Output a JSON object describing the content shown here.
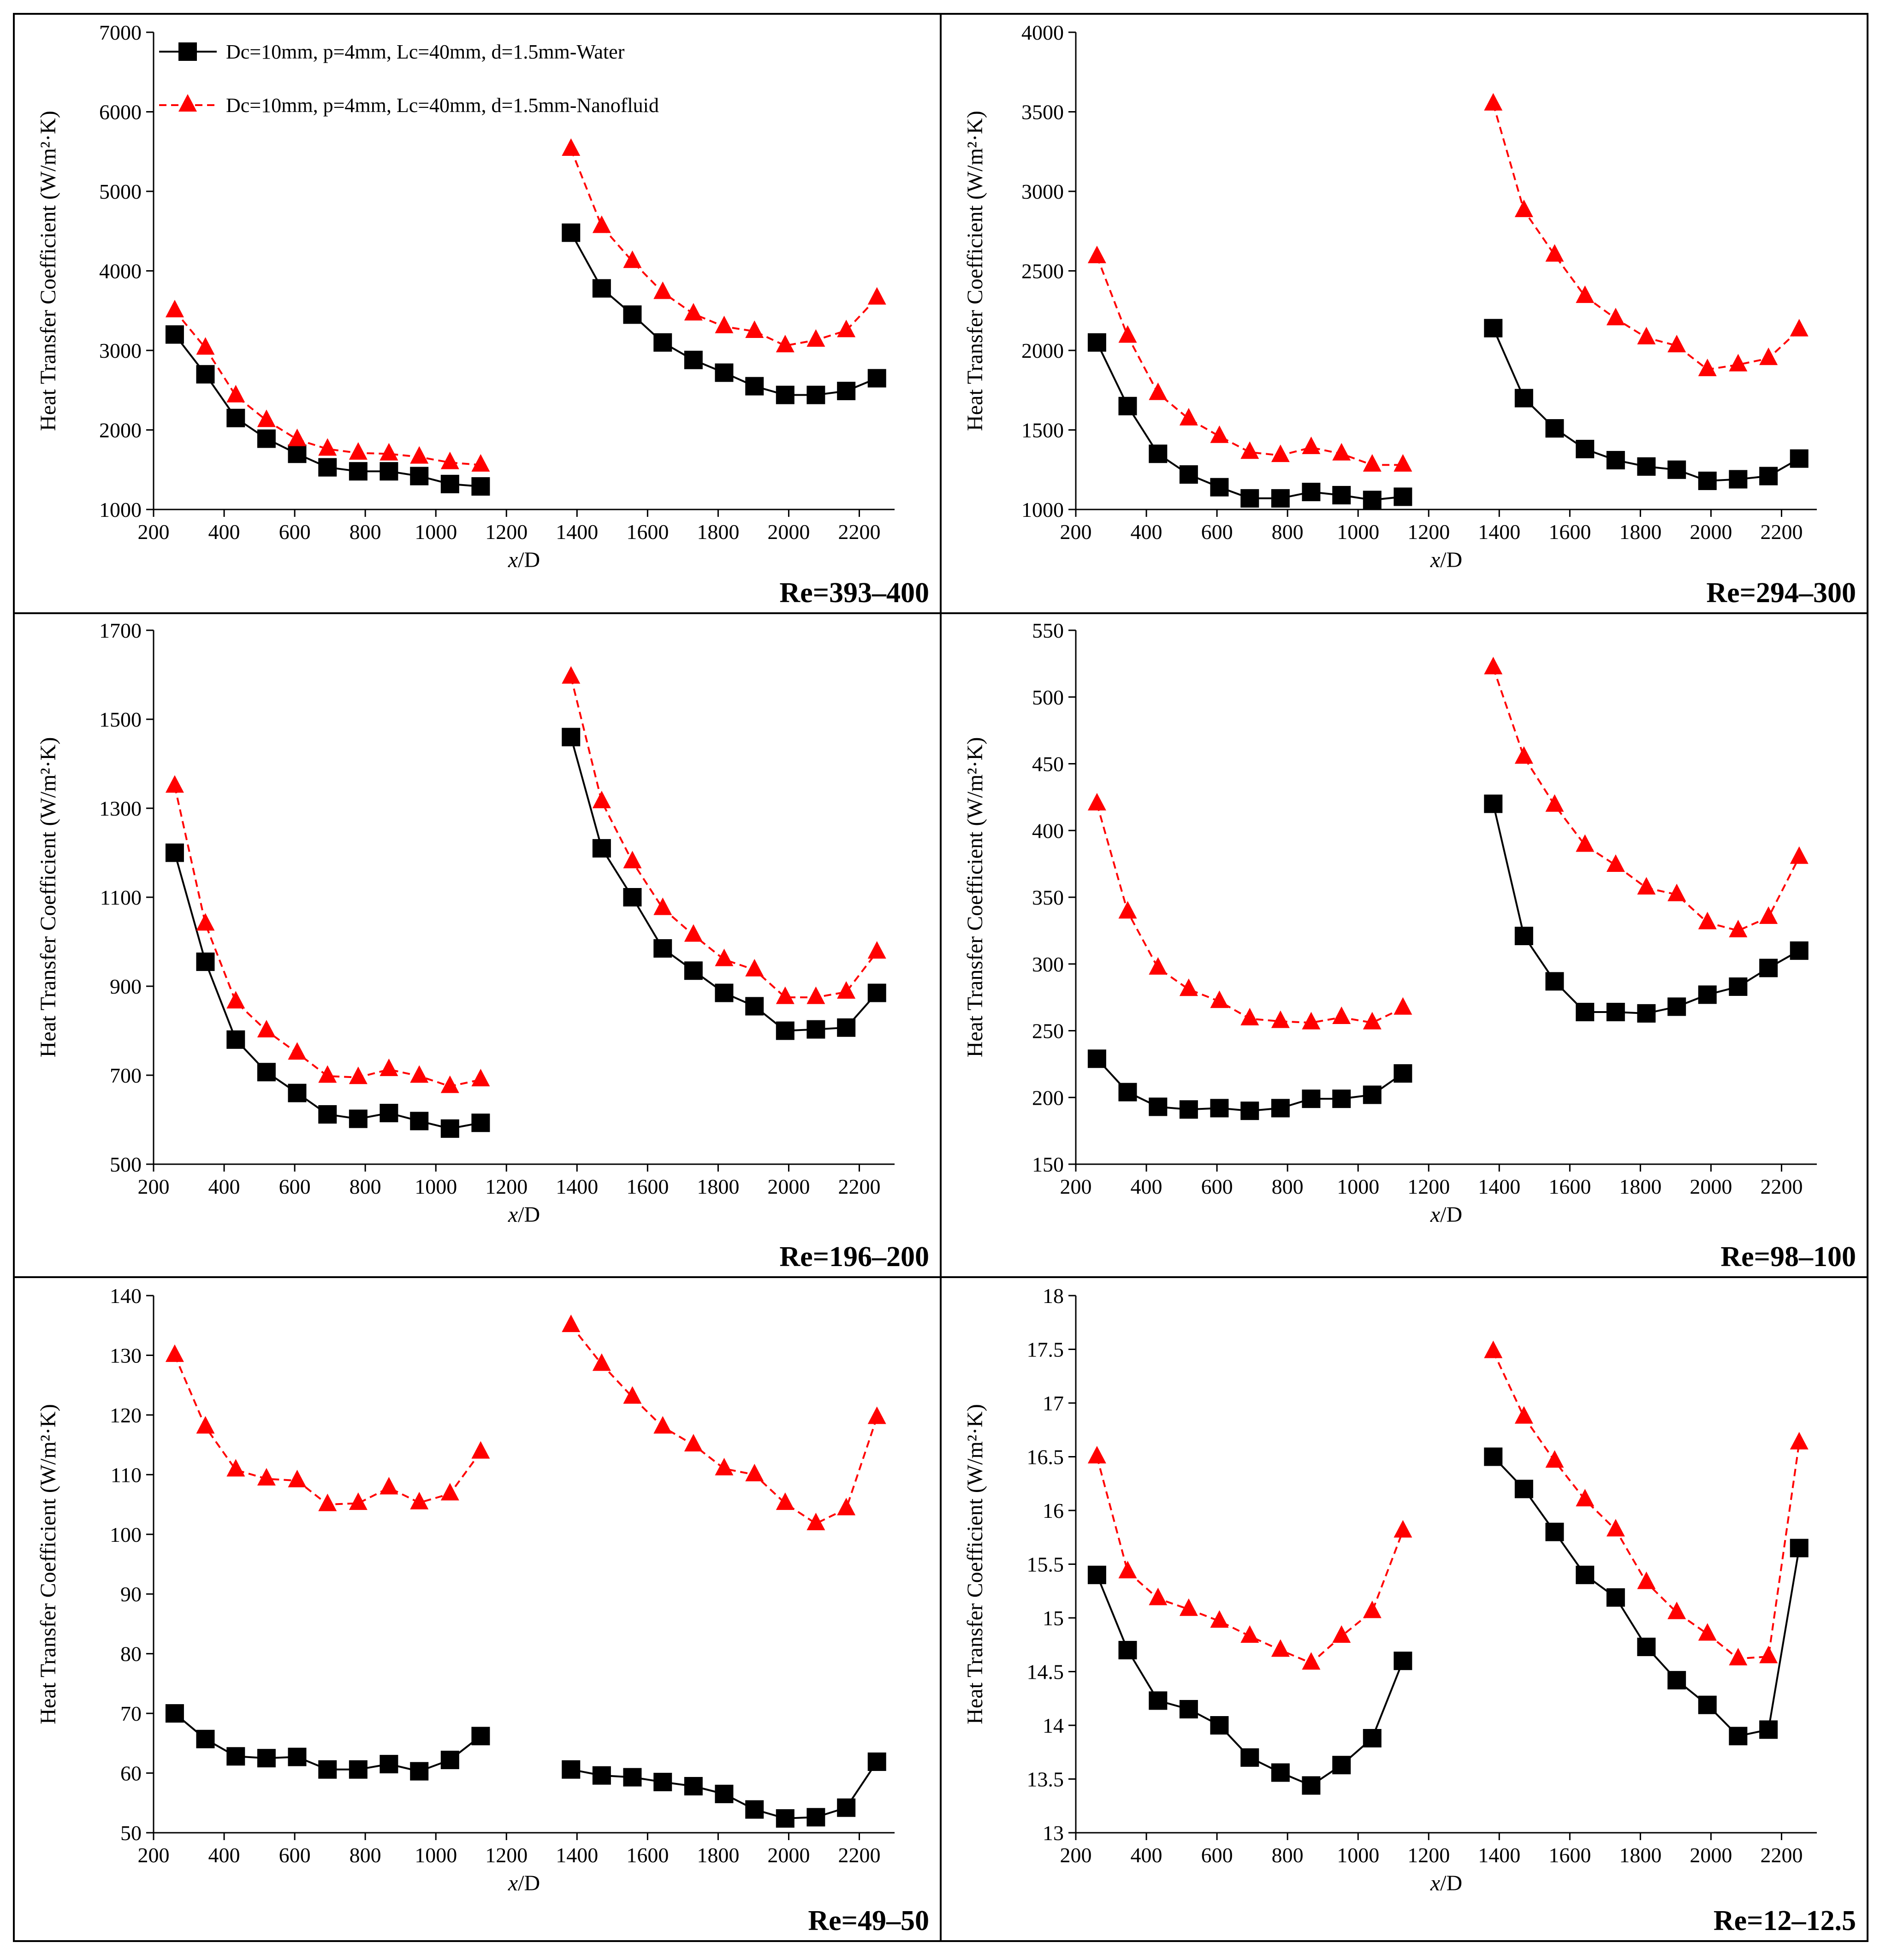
{
  "chart_data": [
    {
      "type": "line",
      "panel_label": "Re=393–400",
      "xlabel_italic": "x",
      "xlabel_rest": "/D",
      "ylabel": "Heat Transfer Coefficient (W/m²·K)",
      "xlim": [
        200,
        2300
      ],
      "ylim": [
        1000,
        7000
      ],
      "xticks": [
        "200",
        "400",
        "600",
        "800",
        "1000",
        "1200",
        "1400",
        "1600",
        "1800",
        "2000",
        "2200"
      ],
      "yticks": [
        "1000",
        "2000",
        "3000",
        "4000",
        "5000",
        "6000",
        "7000"
      ],
      "legend": [
        "Dc=10mm, p=4mm, Lc=40mm, d=1.5mm-Water",
        "Dc=10mm, p=4mm, Lc=40mm, d=1.5mm-Nanofluid"
      ],
      "series": [
        {
          "name": "Water",
          "segments": [
            {
              "x": [
                260,
                347,
                433,
                520,
                607,
                693,
                780,
                867,
                953,
                1040,
                1127
              ],
              "y": [
                3200,
                2700,
                2150,
                1890,
                1700,
                1530,
                1480,
                1480,
                1420,
                1320,
                1290
              ]
            },
            {
              "x": [
                1383,
                1470,
                1557,
                1643,
                1730,
                1817,
                1903,
                1990,
                2077,
                2163,
                2250
              ],
              "y": [
                4480,
                3780,
                3450,
                3100,
                2880,
                2720,
                2550,
                2440,
                2440,
                2490,
                2650
              ]
            }
          ]
        },
        {
          "name": "Nanofluid",
          "segments": [
            {
              "x": [
                260,
                347,
                433,
                520,
                607,
                693,
                780,
                867,
                953,
                1040,
                1127
              ],
              "y": [
                3500,
                3030,
                2430,
                2120,
                1880,
                1760,
                1710,
                1700,
                1660,
                1590,
                1560
              ]
            },
            {
              "x": [
                1383,
                1470,
                1557,
                1643,
                1730,
                1817,
                1903,
                1990,
                2077,
                2163,
                2250
              ],
              "y": [
                5530,
                4560,
                4120,
                3730,
                3460,
                3300,
                3240,
                3060,
                3130,
                3250,
                3660
              ]
            }
          ]
        }
      ]
    },
    {
      "type": "line",
      "panel_label": "Re=294–300",
      "xlabel_italic": "x",
      "xlabel_rest": "/D",
      "ylabel": "Heat Transfer Coefficient (W/m²·K)",
      "xlim": [
        200,
        2300
      ],
      "ylim": [
        1000,
        4000
      ],
      "xticks": [
        "200",
        "400",
        "600",
        "800",
        "1000",
        "1200",
        "1400",
        "1600",
        "1800",
        "2000",
        "2200"
      ],
      "yticks": [
        "1000",
        "1500",
        "2000",
        "2500",
        "3000",
        "3500",
        "4000"
      ],
      "series": [
        {
          "name": "Water",
          "segments": [
            {
              "x": [
                260,
                347,
                433,
                520,
                607,
                693,
                780,
                867,
                953,
                1040,
                1127
              ],
              "y": [
                2050,
                1650,
                1350,
                1220,
                1140,
                1070,
                1070,
                1110,
                1090,
                1060,
                1080
              ]
            },
            {
              "x": [
                1383,
                1470,
                1557,
                1643,
                1730,
                1817,
                1903,
                1990,
                2077,
                2163,
                2250
              ],
              "y": [
                2140,
                1700,
                1510,
                1380,
                1310,
                1270,
                1250,
                1180,
                1190,
                1210,
                1320
              ]
            }
          ]
        },
        {
          "name": "Nanofluid",
          "segments": [
            {
              "x": [
                260,
                347,
                433,
                520,
                607,
                693,
                780,
                867,
                953,
                1040,
                1127
              ],
              "y": [
                2590,
                2090,
                1730,
                1570,
                1460,
                1360,
                1340,
                1390,
                1350,
                1280,
                1280
              ]
            },
            {
              "x": [
                1383,
                1470,
                1557,
                1643,
                1730,
                1817,
                1903,
                1990,
                2077,
                2163,
                2250
              ],
              "y": [
                3550,
                2880,
                2600,
                2340,
                2200,
                2080,
                2030,
                1880,
                1910,
                1950,
                2130
              ]
            }
          ]
        }
      ]
    },
    {
      "type": "line",
      "panel_label": "Re=196–200",
      "xlabel_italic": "x",
      "xlabel_rest": "/D",
      "ylabel": "Heat Transfer Coefficient (W/m²·K)",
      "xlim": [
        200,
        2300
      ],
      "ylim": [
        500,
        1700
      ],
      "xticks": [
        "200",
        "400",
        "600",
        "800",
        "1000",
        "1200",
        "1400",
        "1600",
        "1800",
        "2000",
        "2200"
      ],
      "yticks": [
        "500",
        "700",
        "900",
        "1100",
        "1300",
        "1500",
        "1700"
      ],
      "series": [
        {
          "name": "Water",
          "segments": [
            {
              "x": [
                260,
                347,
                433,
                520,
                607,
                693,
                780,
                867,
                953,
                1040,
                1127
              ],
              "y": [
                1200,
                955,
                780,
                707,
                660,
                612,
                602,
                615,
                597,
                580,
                593
              ]
            },
            {
              "x": [
                1383,
                1470,
                1557,
                1643,
                1730,
                1817,
                1903,
                1990,
                2077,
                2163,
                2250
              ],
              "y": [
                1460,
                1210,
                1100,
                985,
                935,
                885,
                855,
                800,
                803,
                807,
                885
              ]
            }
          ]
        },
        {
          "name": "Nanofluid",
          "segments": [
            {
              "x": [
                260,
                347,
                433,
                520,
                607,
                693,
                780,
                867,
                953,
                1040,
                1127
              ],
              "y": [
                1350,
                1040,
                865,
                800,
                750,
                698,
                695,
                713,
                698,
                675,
                690
              ]
            },
            {
              "x": [
                1383,
                1470,
                1557,
                1643,
                1730,
                1817,
                1903,
                1990,
                2077,
                2163,
                2250
              ],
              "y": [
                1595,
                1315,
                1180,
                1075,
                1015,
                960,
                937,
                875,
                875,
                887,
                977
              ]
            }
          ]
        }
      ]
    },
    {
      "type": "line",
      "panel_label": "Re=98–100",
      "xlabel_italic": "x",
      "xlabel_rest": "/D",
      "ylabel": "Heat Transfer Coefficient (W/m²·K)",
      "xlim": [
        200,
        2300
      ],
      "ylim": [
        150,
        550
      ],
      "xticks": [
        "200",
        "400",
        "600",
        "800",
        "1000",
        "1200",
        "1400",
        "1600",
        "1800",
        "2000",
        "2200"
      ],
      "yticks": [
        "150",
        "200",
        "250",
        "300",
        "350",
        "400",
        "450",
        "500",
        "550"
      ],
      "series": [
        {
          "name": "Water",
          "segments": [
            {
              "x": [
                260,
                347,
                433,
                520,
                607,
                693,
                780,
                867,
                953,
                1040,
                1127
              ],
              "y": [
                229,
                204,
                193,
                191,
                192,
                190,
                192,
                199,
                199,
                202,
                218
              ]
            },
            {
              "x": [
                1383,
                1470,
                1557,
                1643,
                1730,
                1817,
                1903,
                1990,
                2077,
                2163,
                2250
              ],
              "y": [
                420,
                321,
                287,
                264,
                264,
                263,
                268,
                277,
                283,
                297,
                310
              ]
            }
          ]
        },
        {
          "name": "Nanofluid",
          "segments": [
            {
              "x": [
                260,
                347,
                433,
                520,
                607,
                693,
                780,
                867,
                953,
                1040,
                1127
              ],
              "y": [
                420,
                339,
                297,
                281,
                272,
                259,
                257,
                256,
                260,
                256,
                267
              ]
            },
            {
              "x": [
                1383,
                1470,
                1557,
                1643,
                1730,
                1817,
                1903,
                1990,
                2077,
                2163,
                2250
              ],
              "y": [
                522,
                455,
                419,
                389,
                374,
                357,
                352,
                331,
                325,
                335,
                380
              ]
            }
          ]
        }
      ]
    },
    {
      "type": "line",
      "panel_label": "Re=49–50",
      "xlabel_italic": "x",
      "xlabel_rest": "/D",
      "ylabel": "Heat Transfer Coefficient (W/m²·K)",
      "xlim": [
        200,
        2300
      ],
      "ylim": [
        50,
        140
      ],
      "xticks": [
        "200",
        "400",
        "600",
        "800",
        "1000",
        "1200",
        "1400",
        "1600",
        "1800",
        "2000",
        "2200"
      ],
      "yticks": [
        "50",
        "60",
        "70",
        "80",
        "90",
        "100",
        "110",
        "120",
        "130",
        "140"
      ],
      "series": [
        {
          "name": "Water",
          "segments": [
            {
              "x": [
                260,
                347,
                433,
                520,
                607,
                693,
                780,
                867,
                953,
                1040,
                1127
              ],
              "y": [
                70,
                65.7,
                62.8,
                62.5,
                62.7,
                60.6,
                60.6,
                61.5,
                60.3,
                62.2,
                66.2
              ]
            },
            {
              "x": [
                1383,
                1470,
                1557,
                1643,
                1730,
                1817,
                1903,
                1990,
                2077,
                2163,
                2250
              ],
              "y": [
                60.6,
                59.6,
                59.3,
                58.5,
                57.8,
                56.5,
                53.9,
                52.4,
                52.6,
                54.2,
                61.9
              ]
            }
          ]
        },
        {
          "name": "Nanofluid",
          "segments": [
            {
              "x": [
                260,
                347,
                433,
                520,
                607,
                693,
                780,
                867,
                953,
                1040,
                1127
              ],
              "y": [
                130,
                118,
                110.8,
                109.3,
                109,
                105,
                105.2,
                107.8,
                105.3,
                106.8,
                113.8
              ]
            },
            {
              "x": [
                1383,
                1470,
                1557,
                1643,
                1730,
                1817,
                1903,
                1990,
                2077,
                2163,
                2250
              ],
              "y": [
                135,
                128.5,
                123,
                118,
                115,
                111,
                110,
                105.2,
                101.8,
                104.3,
                119.6
              ]
            }
          ]
        }
      ]
    },
    {
      "type": "line",
      "panel_label": "Re=12–12.5",
      "xlabel_italic": "x",
      "xlabel_rest": "/D",
      "ylabel": "Heat Transfer Coefficient (W/m²·K)",
      "xlim": [
        200,
        2300
      ],
      "ylim": [
        13,
        18
      ],
      "xticks": [
        "200",
        "400",
        "600",
        "800",
        "1000",
        "1200",
        "1400",
        "1600",
        "1800",
        "2000",
        "2200"
      ],
      "yticks": [
        "13",
        "13.5",
        "14",
        "14.5",
        "15",
        "15.5",
        "16",
        "16.5",
        "17",
        "17.5",
        "18"
      ],
      "series": [
        {
          "name": "Water",
          "segments": [
            {
              "x": [
                260,
                347,
                433,
                520,
                607,
                693,
                780,
                867,
                953,
                1040,
                1127
              ],
              "y": [
                15.4,
                14.7,
                14.23,
                14.15,
                14.0,
                13.7,
                13.56,
                13.44,
                13.63,
                13.88,
                14.6
              ]
            },
            {
              "x": [
                1383,
                1470,
                1557,
                1643,
                1730,
                1817,
                1903,
                1990,
                2077,
                2163,
                2250
              ],
              "y": [
                16.5,
                16.2,
                15.8,
                15.4,
                15.19,
                14.73,
                14.42,
                14.19,
                13.9,
                13.96,
                15.65
              ]
            }
          ]
        },
        {
          "name": "Nanofluid",
          "segments": [
            {
              "x": [
                260,
                347,
                433,
                520,
                607,
                693,
                780,
                867,
                953,
                1040,
                1127
              ],
              "y": [
                16.5,
                15.43,
                15.18,
                15.08,
                14.97,
                14.83,
                14.7,
                14.58,
                14.83,
                15.06,
                15.81
              ]
            },
            {
              "x": [
                1383,
                1470,
                1557,
                1643,
                1730,
                1817,
                1903,
                1990,
                2077,
                2163,
                2250
              ],
              "y": [
                17.48,
                16.87,
                16.46,
                16.1,
                15.82,
                15.33,
                15.05,
                14.85,
                14.62,
                14.64,
                16.63
              ]
            }
          ]
        }
      ]
    }
  ]
}
